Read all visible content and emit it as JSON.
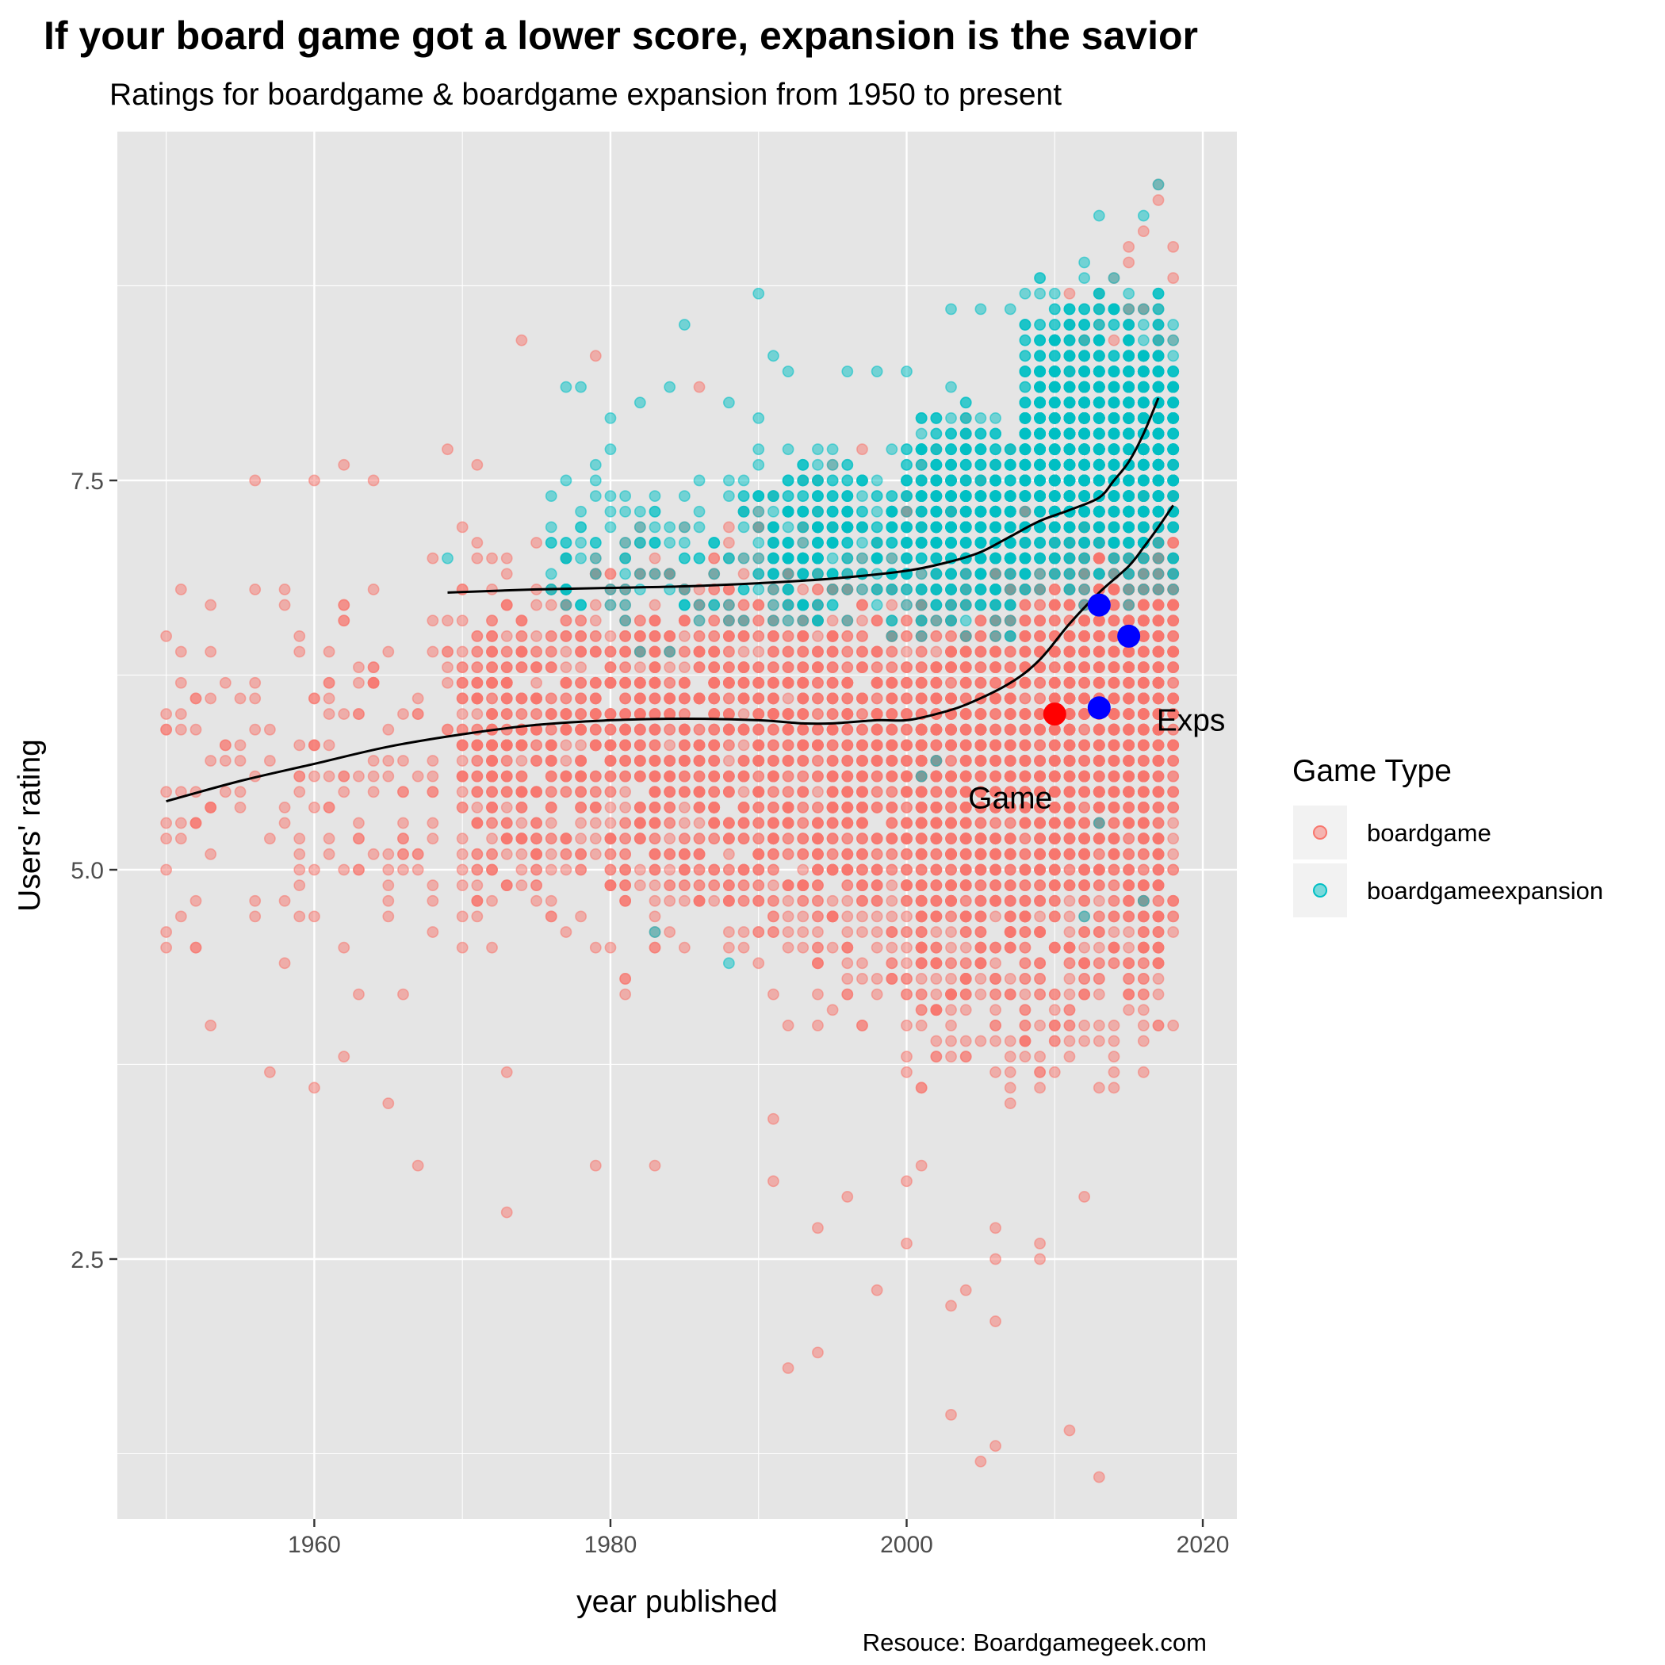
{
  "chart_data": {
    "type": "scatter",
    "title": "If your board game got a lower score, expansion is the savior",
    "subtitle": "Ratings for boardgame & boardgame expansion from 1950 to present",
    "xlabel": "year published",
    "ylabel": "Users' rating",
    "caption": "Resouce: Boardgamegeek.com",
    "xlim": [
      1946.7,
      2022.3
    ],
    "ylim": [
      0.83,
      9.74
    ],
    "x_ticks": [
      1960,
      1980,
      2000,
      2020
    ],
    "x_tick_labels": [
      "1960",
      "1980",
      "2000",
      "2020"
    ],
    "y_ticks": [
      2.5,
      5.0,
      7.5
    ],
    "y_tick_labels": [
      "2.5",
      "5.0",
      "7.5"
    ],
    "grid": true,
    "legend": {
      "title": "Game Type",
      "placement": "right",
      "entries": [
        {
          "label": "boardgame",
          "color": "#F8766D"
        },
        {
          "label": "boardgameexpansion",
          "color": "#00BFC4"
        }
      ]
    },
    "series": [
      {
        "name": "boardgame",
        "color": "#F8766D",
        "bands": [
          {
            "x0": 1950,
            "x1": 1970,
            "lo": 4.0,
            "hi": 7.3,
            "count": 170,
            "seed": 11
          },
          {
            "x0": 1970,
            "x1": 1980,
            "lo": 4.2,
            "hi": 7.5,
            "count": 520,
            "seed": 12
          },
          {
            "x0": 1980,
            "x1": 1990,
            "lo": 4.0,
            "hi": 7.6,
            "count": 700,
            "seed": 13
          },
          {
            "x0": 1990,
            "x1": 2000,
            "lo": 3.8,
            "hi": 7.8,
            "count": 850,
            "seed": 14
          },
          {
            "x0": 2000,
            "x1": 2010,
            "lo": 3.2,
            "hi": 8.1,
            "count": 1500,
            "seed": 15
          },
          {
            "x0": 2010,
            "x1": 2018,
            "lo": 3.3,
            "hi": 9.2,
            "count": 1700,
            "seed": 16
          }
        ],
        "outliers": [
          [
            1950,
            6.5
          ],
          [
            1950,
            6.0
          ],
          [
            1950,
            5.5
          ],
          [
            1950,
            5.0
          ],
          [
            1951,
            6.8
          ],
          [
            1951,
            4.7
          ],
          [
            1952,
            4.5
          ],
          [
            1952,
            6.1
          ],
          [
            1953,
            4.0
          ],
          [
            1956,
            7.5
          ],
          [
            1957,
            3.7
          ],
          [
            1960,
            3.6
          ],
          [
            1960,
            7.5
          ],
          [
            1962,
            3.8
          ],
          [
            1962,
            7.6
          ],
          [
            1964,
            7.5
          ],
          [
            1965,
            3.5
          ],
          [
            1967,
            3.1
          ],
          [
            1969,
            7.7
          ],
          [
            1971,
            7.6
          ],
          [
            1973,
            2.8
          ],
          [
            1973,
            3.7
          ],
          [
            1974,
            8.4
          ],
          [
            1979,
            3.1
          ],
          [
            1979,
            8.3
          ],
          [
            1983,
            3.1
          ],
          [
            1986,
            8.1
          ],
          [
            1991,
            3.0
          ],
          [
            1991,
            3.4
          ],
          [
            1992,
            1.8
          ],
          [
            1994,
            1.9
          ],
          [
            1994,
            2.7
          ],
          [
            1996,
            2.9
          ],
          [
            1998,
            2.3
          ],
          [
            2000,
            2.6
          ],
          [
            2000,
            3.0
          ],
          [
            2001,
            3.1
          ],
          [
            2003,
            1.5
          ],
          [
            2003,
            2.2
          ],
          [
            2004,
            2.3
          ],
          [
            2005,
            1.2
          ],
          [
            2006,
            1.3
          ],
          [
            2006,
            2.1
          ],
          [
            2006,
            2.5
          ],
          [
            2006,
            2.7
          ],
          [
            2009,
            2.5
          ],
          [
            2009,
            2.6
          ],
          [
            2011,
            1.4
          ],
          [
            2012,
            2.9
          ],
          [
            2013,
            1.1
          ],
          [
            2017,
            9.4
          ],
          [
            2017,
            9.3
          ],
          [
            2018,
            9.0
          ],
          [
            2018,
            8.8
          ],
          [
            2016,
            9.1
          ],
          [
            2015,
            8.9
          ],
          [
            2014,
            8.8
          ],
          [
            2009,
            8.1
          ],
          [
            2011,
            8.5
          ],
          [
            2018,
            7.4
          ]
        ]
      },
      {
        "name": "boardgameexpansion",
        "color": "#00BFC4",
        "bands": [
          {
            "x0": 1976,
            "x1": 1990,
            "lo": 6.2,
            "hi": 7.9,
            "count": 110,
            "seed": 21
          },
          {
            "x0": 1990,
            "x1": 2000,
            "lo": 6.4,
            "hi": 7.9,
            "count": 280,
            "seed": 22
          },
          {
            "x0": 2000,
            "x1": 2008,
            "lo": 6.3,
            "hi": 8.2,
            "count": 520,
            "seed": 23
          },
          {
            "x0": 2008,
            "x1": 2018,
            "lo": 6.6,
            "hi": 8.9,
            "count": 1500,
            "seed": 24
          }
        ],
        "outliers": [
          [
            1969,
            7.0
          ],
          [
            1977,
            8.1
          ],
          [
            1978,
            8.1
          ],
          [
            1980,
            7.9
          ],
          [
            1982,
            8.0
          ],
          [
            1984,
            8.1
          ],
          [
            1985,
            8.5
          ],
          [
            1988,
            8.0
          ],
          [
            1990,
            8.7
          ],
          [
            1991,
            8.3
          ],
          [
            1992,
            8.2
          ],
          [
            1996,
            8.2
          ],
          [
            1998,
            8.2
          ],
          [
            2000,
            8.2
          ],
          [
            2003,
            8.6
          ],
          [
            2005,
            8.6
          ],
          [
            2007,
            8.6
          ],
          [
            2008,
            8.4
          ],
          [
            2009,
            8.8
          ],
          [
            2012,
            8.9
          ],
          [
            2013,
            9.2
          ],
          [
            2017,
            9.4
          ],
          [
            2016,
            9.2
          ],
          [
            1983,
            4.6
          ],
          [
            1988,
            4.4
          ],
          [
            2002,
            5.7
          ],
          [
            2001,
            5.6
          ],
          [
            2012,
            4.7
          ],
          [
            2016,
            4.8
          ],
          [
            2013,
            5.3
          ]
        ]
      }
    ],
    "trend_lines": [
      {
        "name": "boardgame",
        "points": [
          [
            1950,
            5.44
          ],
          [
            1955,
            5.57
          ],
          [
            1960,
            5.68
          ],
          [
            1965,
            5.79
          ],
          [
            1970,
            5.87
          ],
          [
            1975,
            5.93
          ],
          [
            1980,
            5.96
          ],
          [
            1985,
            5.97
          ],
          [
            1990,
            5.96
          ],
          [
            1993,
            5.94
          ],
          [
            1995,
            5.94
          ],
          [
            1998,
            5.96
          ],
          [
            2000,
            5.96
          ],
          [
            2002,
            6.0
          ],
          [
            2004,
            6.06
          ],
          [
            2007,
            6.2
          ],
          [
            2009,
            6.35
          ],
          [
            2011,
            6.58
          ],
          [
            2013,
            6.78
          ],
          [
            2015,
            6.95
          ],
          [
            2016,
            7.07
          ],
          [
            2017,
            7.2
          ],
          [
            2018,
            7.34
          ]
        ]
      },
      {
        "name": "boardgameexpansion",
        "points": [
          [
            1969,
            6.78
          ],
          [
            1975,
            6.8
          ],
          [
            1980,
            6.81
          ],
          [
            1985,
            6.82
          ],
          [
            1990,
            6.84
          ],
          [
            1995,
            6.87
          ],
          [
            2000,
            6.92
          ],
          [
            2003,
            6.98
          ],
          [
            2005,
            7.04
          ],
          [
            2007,
            7.14
          ],
          [
            2009,
            7.24
          ],
          [
            2011,
            7.31
          ],
          [
            2013,
            7.39
          ],
          [
            2014,
            7.5
          ],
          [
            2015,
            7.62
          ],
          [
            2016,
            7.8
          ],
          [
            2017,
            8.03
          ]
        ]
      }
    ],
    "highlight_points": [
      {
        "label": "Game",
        "x": 2010,
        "y": 6.0,
        "color": "#FF0000"
      },
      {
        "label": "Exps",
        "x": 2013,
        "y": 6.7,
        "color": "#0000FF"
      },
      {
        "label": "Exps",
        "x": 2015,
        "y": 6.5,
        "color": "#0000FF"
      },
      {
        "label": "Exps",
        "x": 2013,
        "y": 6.04,
        "color": "#0000FF"
      }
    ],
    "annotations": [
      {
        "text": "Game",
        "x": 2007.0,
        "y": 5.46
      },
      {
        "text": "Exps",
        "x": 2019.2,
        "y": 5.96
      }
    ],
    "panel_background": "#E5E5E5",
    "grid_color": "#FFFFFF"
  }
}
